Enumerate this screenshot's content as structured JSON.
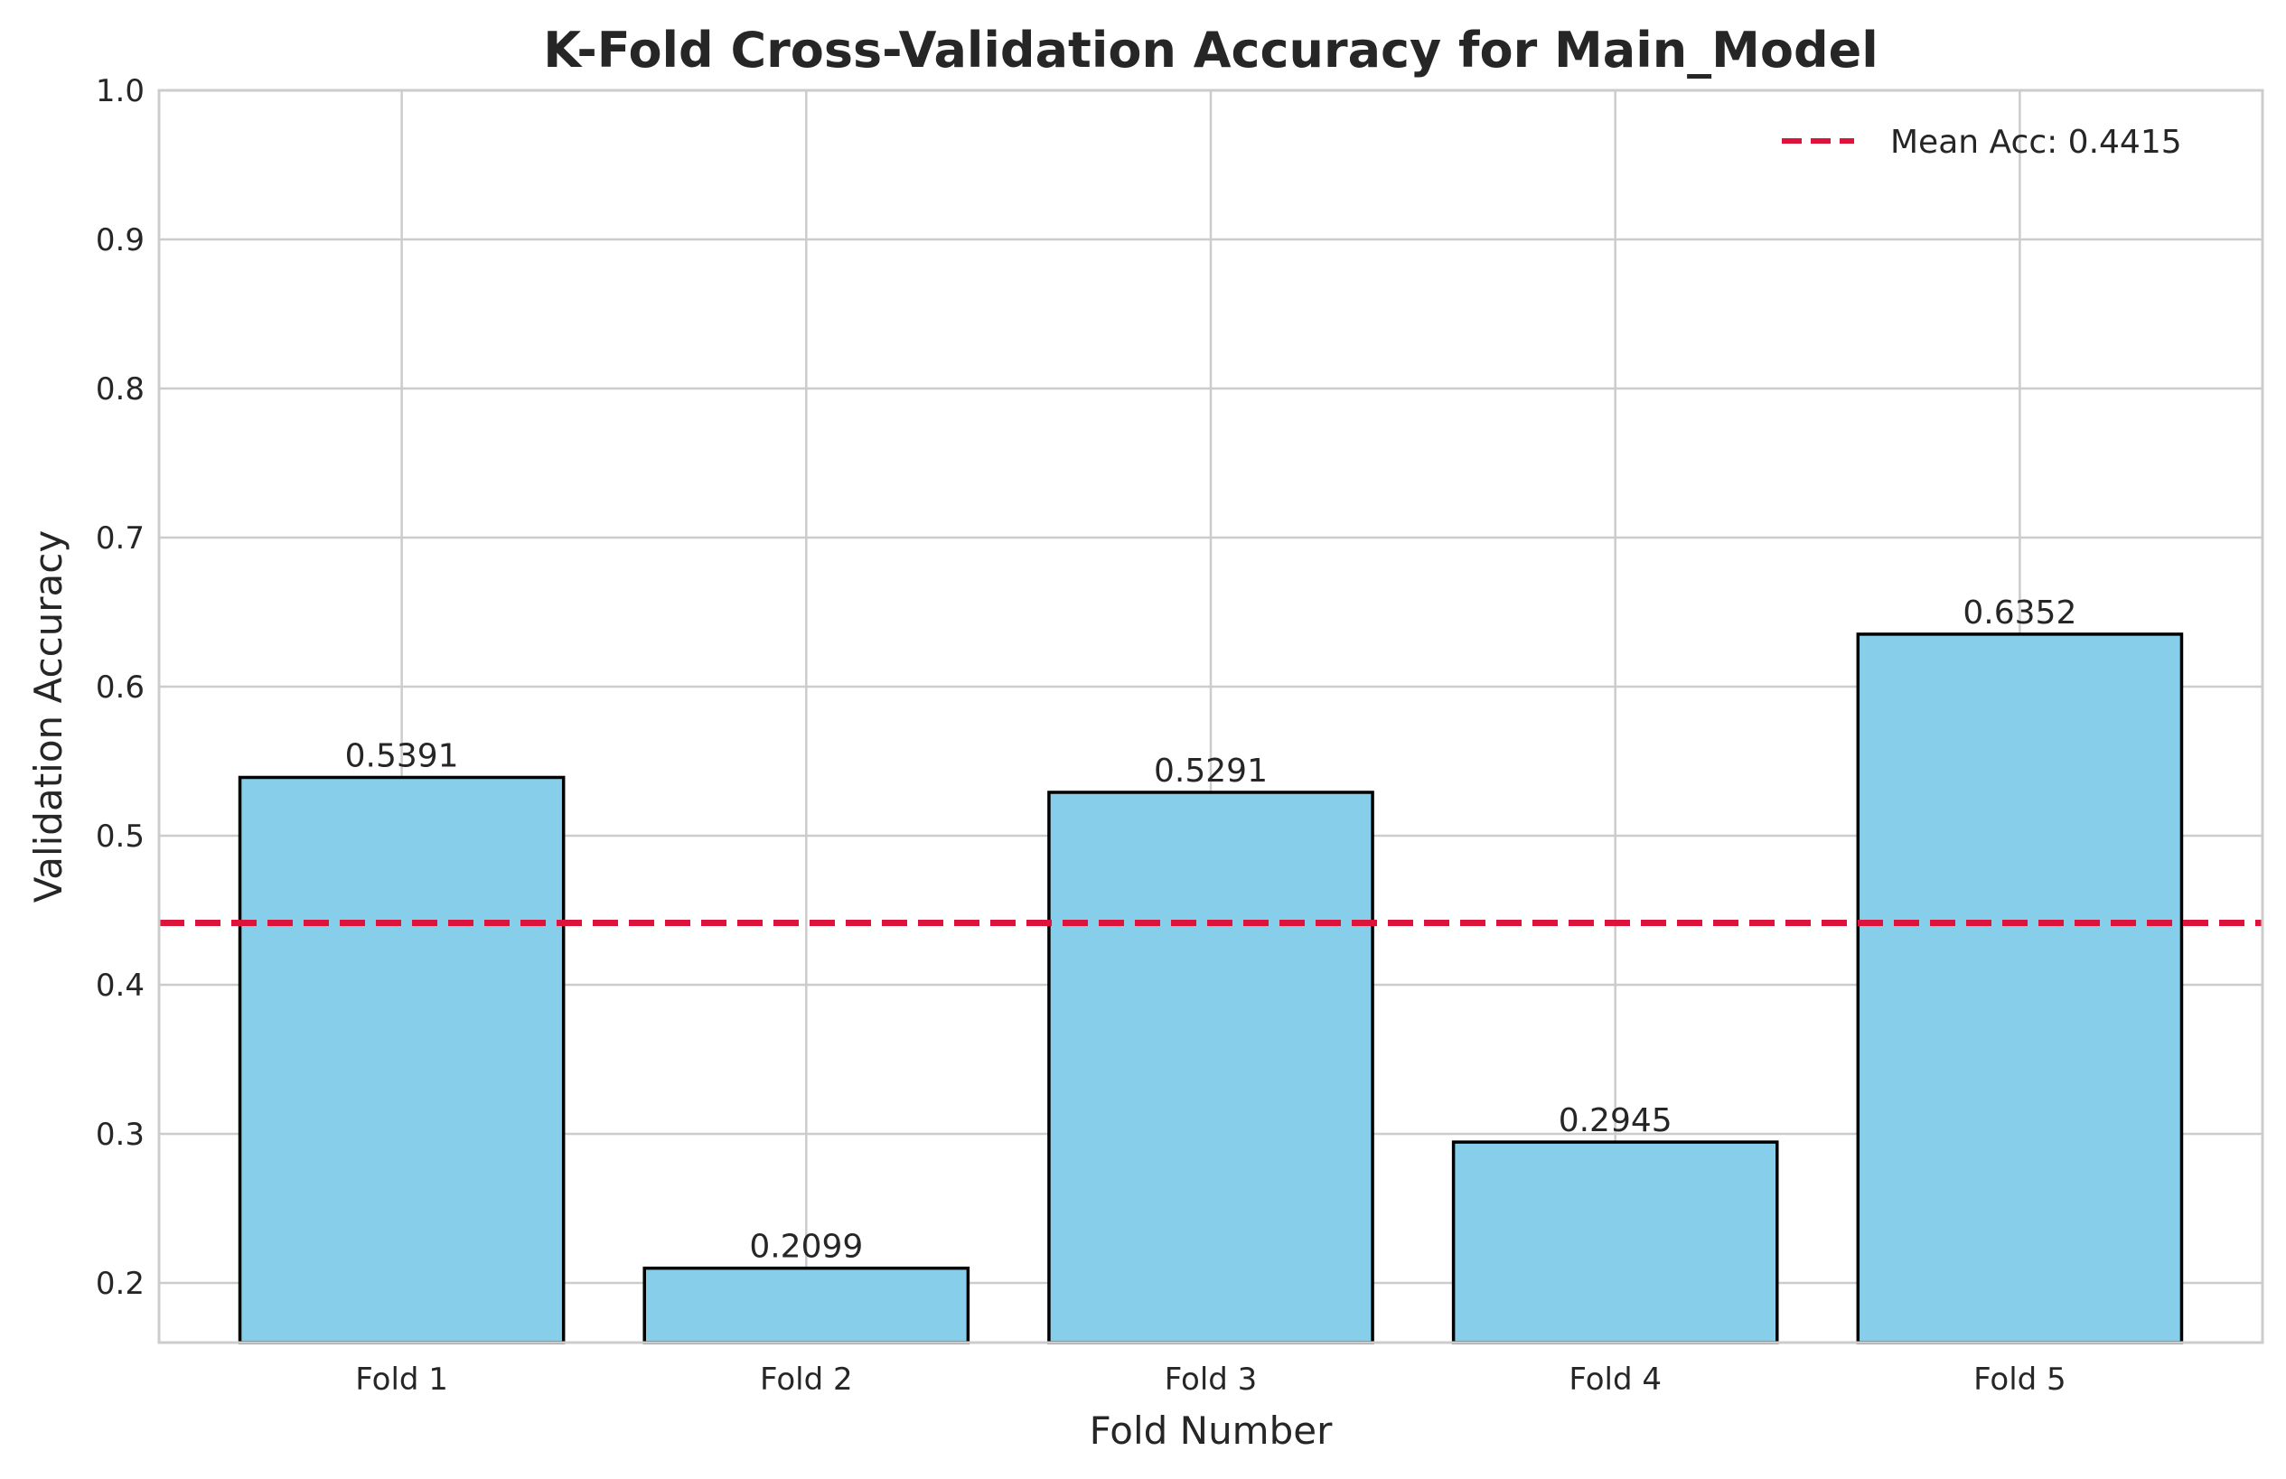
{
  "chart_data": {
    "type": "bar",
    "title": "K-Fold Cross-Validation Accuracy for Main_Model",
    "xlabel": "Fold Number",
    "ylabel": "Validation Accuracy",
    "categories": [
      "Fold 1",
      "Fold 2",
      "Fold 3",
      "Fold 4",
      "Fold 5"
    ],
    "values": [
      0.5391,
      0.2099,
      0.5291,
      0.2945,
      0.6352
    ],
    "value_labels": [
      "0.5391",
      "0.2099",
      "0.5291",
      "0.2945",
      "0.6352"
    ],
    "ylim": [
      0.16,
      1.0
    ],
    "yticks": [
      0.2,
      0.3,
      0.4,
      0.5,
      0.6,
      0.7,
      0.8,
      0.9,
      1.0
    ],
    "ytick_labels": [
      "0.2",
      "0.3",
      "0.4",
      "0.5",
      "0.6",
      "0.7",
      "0.8",
      "0.9",
      "1.0"
    ],
    "mean_line": {
      "value": 0.4415,
      "label": "Mean Acc: 0.4415"
    },
    "grid": true,
    "legend_position": "top-right",
    "colors": {
      "bar_fill": "#87ceeb",
      "bar_edge": "#000000",
      "mean_line": "#dc143c",
      "grid": "#cccccc"
    }
  }
}
